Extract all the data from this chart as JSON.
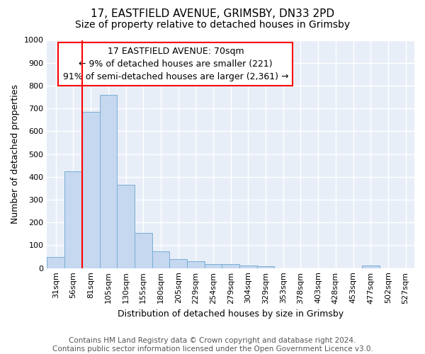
{
  "title_line1": "17, EASTFIELD AVENUE, GRIMSBY, DN33 2PD",
  "title_line2": "Size of property relative to detached houses in Grimsby",
  "xlabel": "Distribution of detached houses by size in Grimsby",
  "ylabel": "Number of detached properties",
  "categories": [
    "31sqm",
    "56sqm",
    "81sqm",
    "105sqm",
    "130sqm",
    "155sqm",
    "180sqm",
    "205sqm",
    "229sqm",
    "254sqm",
    "279sqm",
    "304sqm",
    "329sqm",
    "353sqm",
    "378sqm",
    "403sqm",
    "428sqm",
    "453sqm",
    "477sqm",
    "502sqm",
    "527sqm"
  ],
  "values": [
    50,
    425,
    685,
    760,
    365,
    153,
    75,
    40,
    30,
    18,
    18,
    10,
    8,
    0,
    0,
    0,
    0,
    0,
    10,
    0,
    0
  ],
  "bar_color": "#c5d8f0",
  "bar_edge_color": "#7aadd4",
  "ylim": [
    0,
    1000
  ],
  "yticks": [
    0,
    100,
    200,
    300,
    400,
    500,
    600,
    700,
    800,
    900,
    1000
  ],
  "vline_x": 2.0,
  "vline_color": "red",
  "annotation_text": "17 EASTFIELD AVENUE: 70sqm\n← 9% of detached houses are smaller (221)\n91% of semi-detached houses are larger (2,361) →",
  "annotation_box_color": "white",
  "annotation_box_edge_color": "red",
  "footer_line1": "Contains HM Land Registry data © Crown copyright and database right 2024.",
  "footer_line2": "Contains public sector information licensed under the Open Government Licence v3.0.",
  "background_color": "#ffffff",
  "plot_bg_color": "#e8eef8",
  "grid_color": "#ffffff",
  "title_fontsize": 11,
  "subtitle_fontsize": 10,
  "xlabel_fontsize": 9,
  "ylabel_fontsize": 9,
  "tick_fontsize": 8,
  "footer_fontsize": 7.5,
  "annotation_fontsize": 9
}
